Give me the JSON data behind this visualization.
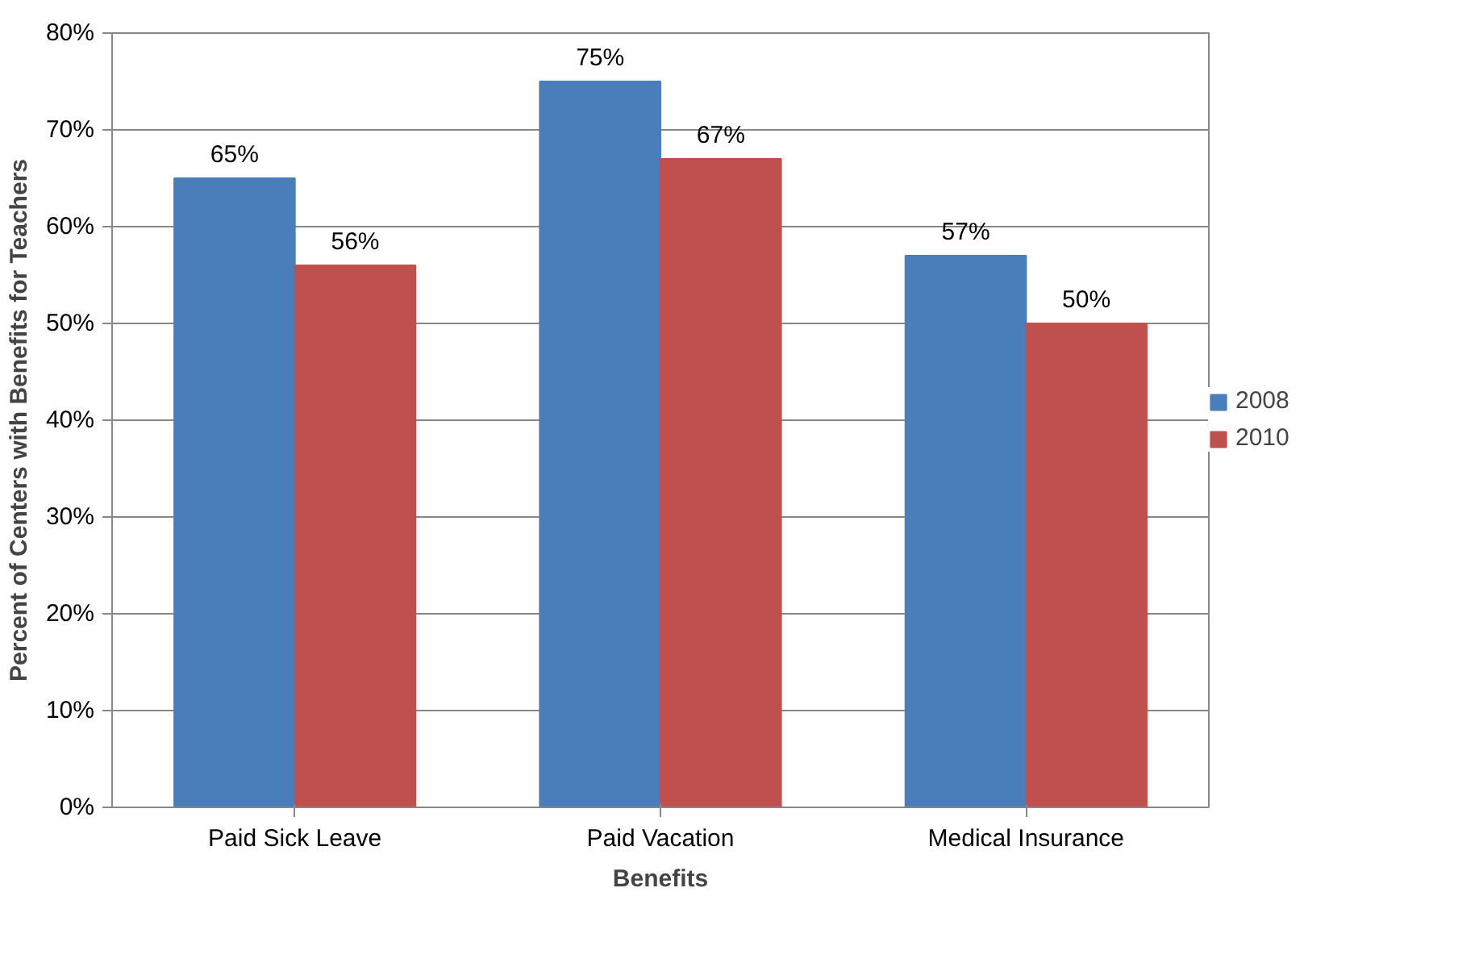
{
  "chart_data": {
    "type": "bar",
    "xlabel": "Benefits",
    "ylabel": "Percent of Centers with Benefits for Teachers",
    "categories": [
      "Paid Sick Leave",
      "Paid Vacation",
      "Medical Insurance"
    ],
    "series": [
      {
        "name": "2008",
        "color": "#4a7ebb",
        "values": [
          65,
          75,
          57
        ],
        "value_labels": [
          "65%",
          "75%",
          "57%"
        ]
      },
      {
        "name": "2010",
        "color": "#c0504d",
        "values": [
          56,
          67,
          50
        ],
        "value_labels": [
          "56%",
          "67%",
          "50%"
        ]
      }
    ],
    "ylim": [
      0,
      80
    ],
    "yticks": [
      {
        "value": 0,
        "label": "0%"
      },
      {
        "value": 10,
        "label": "10%"
      },
      {
        "value": 20,
        "label": "20%"
      },
      {
        "value": 30,
        "label": "30%"
      },
      {
        "value": 40,
        "label": "40%"
      },
      {
        "value": 50,
        "label": "50%"
      },
      {
        "value": 60,
        "label": "60%"
      },
      {
        "value": 70,
        "label": "70%"
      },
      {
        "value": 80,
        "label": "80%"
      }
    ],
    "grid": "y",
    "legend": "right"
  }
}
